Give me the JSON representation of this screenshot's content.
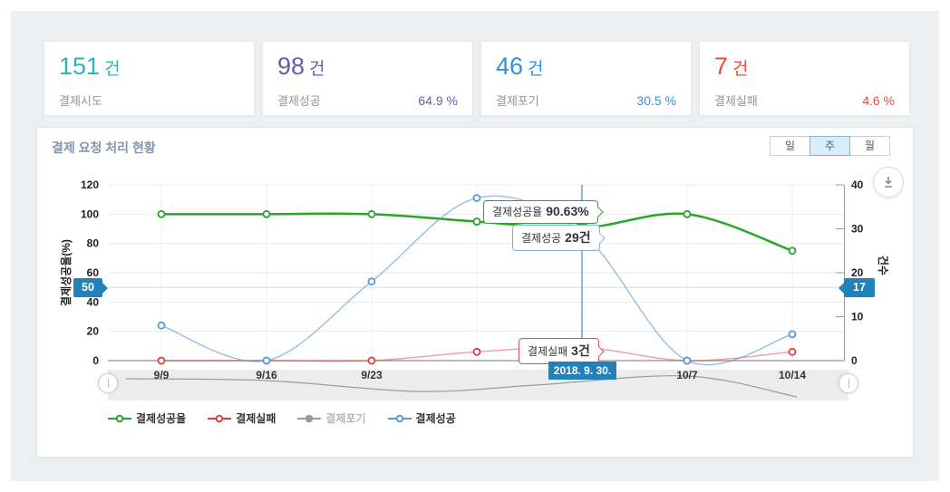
{
  "cards": [
    {
      "value": "151",
      "unit": "건",
      "label": "결제시도",
      "percent": "",
      "color": "#29b3bb"
    },
    {
      "value": "98",
      "unit": "건",
      "label": "결제성공",
      "percent": "64.9 %",
      "color": "#655ea3"
    },
    {
      "value": "46",
      "unit": "건",
      "label": "결제포기",
      "percent": "30.5 %",
      "color": "#338fdb"
    },
    {
      "value": "7",
      "unit": "건",
      "label": "결제실패",
      "percent": "4.6 %",
      "color": "#ee4a3b"
    }
  ],
  "panel": {
    "title": "결제 요청 처리 현황",
    "range_buttons": [
      {
        "label": "일",
        "active": false
      },
      {
        "label": "주",
        "active": true
      },
      {
        "label": "월",
        "active": false
      }
    ],
    "download_icon": "download-icon"
  },
  "crosshair": {
    "left_value": "50",
    "right_value": "17",
    "date": "2018. 9. 30.",
    "accent_color": "#2281b8"
  },
  "tooltips": {
    "success_rate": {
      "label": "결제성공율",
      "value": "90.63%"
    },
    "success": {
      "label": "결제성공",
      "value": "29건"
    },
    "fail": {
      "label": "결제실패",
      "value": "3건"
    }
  },
  "legend": [
    {
      "id": "success-rate",
      "label": "결제성공율",
      "color": "#2aa52a",
      "filled": false,
      "disabled": false
    },
    {
      "id": "fail",
      "label": "결제실패",
      "color": "#d9403e",
      "filled": false,
      "disabled": false
    },
    {
      "id": "abandon",
      "label": "결제포기",
      "color": "#9a9a9a",
      "filled": true,
      "disabled": true
    },
    {
      "id": "success",
      "label": "결제성공",
      "color": "#5b9bd5",
      "filled": false,
      "disabled": false
    }
  ],
  "chart_data": {
    "type": "line",
    "title": "결제 요청 처리 현황",
    "x_tick_labels": [
      {
        "label": "9/9",
        "point": 0
      },
      {
        "label": "9/16",
        "point": 1
      },
      {
        "label": "9/23",
        "point": 2
      },
      {
        "label": "10/7",
        "point": 5
      },
      {
        "label": "10/14",
        "point": 6
      }
    ],
    "hover_point": 4,
    "hover_date": "2018. 9. 30.",
    "left_axis": {
      "title": "결제성공율(%)",
      "min": 0,
      "max": 120,
      "ticks": [
        0,
        20,
        40,
        60,
        80,
        100,
        120
      ]
    },
    "right_axis": {
      "title": "건수",
      "min": 0,
      "max": 40,
      "ticks": [
        0,
        10,
        20,
        30,
        40
      ]
    },
    "series": [
      {
        "id": "success-rate",
        "name": "결제성공율",
        "axis": "left",
        "color": "#2aa52a",
        "line_width": 2.5,
        "values": [
          100,
          100,
          100,
          94.9,
          90.63,
          100,
          75
        ]
      },
      {
        "id": "fail",
        "name": "결제실패",
        "axis": "right",
        "color": "#d9403e",
        "line_width": 1.4,
        "values": [
          0,
          0,
          0,
          2,
          3,
          0,
          2
        ]
      },
      {
        "id": "abandon",
        "name": "결제포기",
        "axis": "right",
        "color": "#9a9a9a",
        "hidden": true,
        "values": null
      },
      {
        "id": "success",
        "name": "결제성공",
        "axis": "right",
        "color": "#5b9bd5",
        "line_width": 1.4,
        "values": [
          8,
          0,
          18,
          37,
          29,
          0,
          6
        ]
      }
    ],
    "crosshair": {
      "left_axis_value": 50,
      "right_axis_value": 17
    },
    "legend_position": "bottom",
    "grid": true
  }
}
